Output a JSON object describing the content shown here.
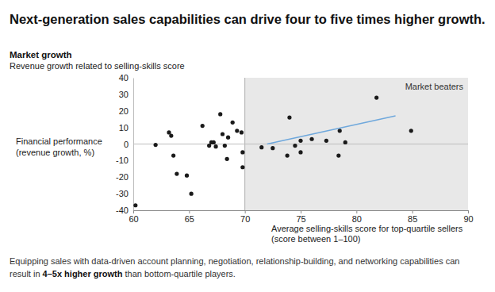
{
  "chart_data": {
    "type": "scatter",
    "title": "Next-generation sales capabilities can drive four to five times higher growth.",
    "subtitle": [
      "Market growth",
      "Revenue growth related to selling-skills score"
    ],
    "xlabel": [
      "Average selling-skills score for top-quartile sellers",
      "(score between 1–100)"
    ],
    "ylabel": [
      "Financial performance",
      "(revenue growth, %)"
    ],
    "xlim": [
      60,
      90
    ],
    "xticks": [
      60,
      65,
      70,
      75,
      80,
      85,
      90
    ],
    "ylim": [
      -40,
      40
    ],
    "yticks": [
      -40,
      -30,
      -20,
      -10,
      0,
      10,
      20,
      30,
      40
    ],
    "grid": false,
    "highlight": {
      "label": "Market beaters",
      "x_from": 70,
      "x_to": 90
    },
    "series": [
      {
        "type": "scatter",
        "marker": "circle",
        "color": "#1a1a1a",
        "x": [
          60.2,
          62,
          63.2,
          63.4,
          63.6,
          63.9,
          64.8,
          65.2,
          66.2,
          66.8,
          67,
          67.2,
          67.4,
          67.8,
          68,
          68.2,
          68.4,
          68.5,
          68.9,
          69.3,
          69.7,
          69.8,
          69.8,
          71.5,
          72.5,
          73.8,
          74,
          74.5,
          75,
          75,
          76,
          77.3,
          78.4,
          78.5,
          79,
          81.8,
          84.9
        ],
        "values": [
          -37,
          -0.5,
          7,
          5,
          -7,
          -18,
          -19,
          -30,
          11,
          -1,
          1,
          1,
          -1.5,
          18,
          6,
          -1,
          -9,
          4,
          13,
          8,
          7,
          -5,
          -14,
          -2,
          -2.5,
          -7,
          16,
          -1,
          -5,
          2,
          3,
          2,
          -7,
          8,
          1,
          28,
          8
        ]
      },
      {
        "type": "line",
        "line_style": "solid",
        "color": "#6fa8dc",
        "x": [
          72,
          83.5
        ],
        "values": [
          0,
          17
        ]
      }
    ],
    "footnote": [
      "Equipping sales with data-driven account planning, negotiation, relationship-building, and networking capabilities can",
      "result in",
      "4–5x higher growth",
      "than bottom-quartile players."
    ]
  }
}
